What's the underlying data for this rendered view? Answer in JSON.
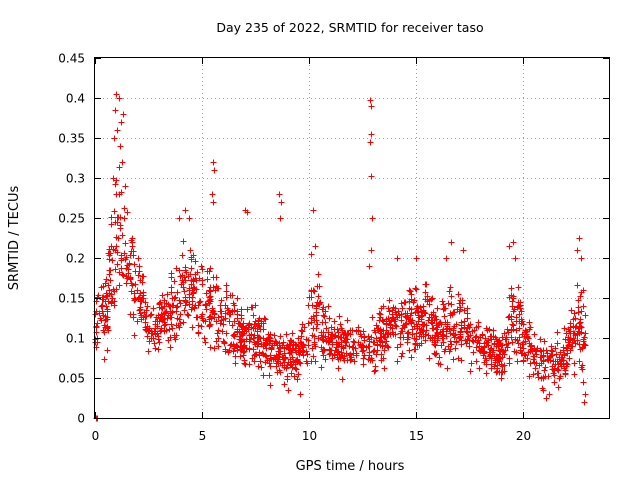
{
  "chart_data": {
    "type": "scatter",
    "title": "Day 235 of 2022, SRMTID for receiver taso",
    "xlabel": "GPS time / hours",
    "ylabel": "SRMTID / TECUs",
    "xlim": [
      0,
      24
    ],
    "ylim": [
      0,
      0.45
    ],
    "x_ticks": [
      0,
      5,
      10,
      15,
      20
    ],
    "x_tick_labels": [
      "0",
      "5",
      "10",
      "15",
      "20"
    ],
    "y_ticks": [
      0,
      0.05,
      0.1,
      0.15,
      0.2,
      0.25,
      0.3,
      0.35,
      0.4,
      0.45
    ],
    "y_tick_labels": [
      "0",
      "0.05",
      "0.1",
      "0.15",
      "0.2",
      "0.25",
      "0.3",
      "0.35",
      "0.4",
      "0.45"
    ],
    "grid": true,
    "marker": "+",
    "series_color": "#ff0000",
    "data_x_range": [
      0,
      22.9
    ],
    "approx_point_count": 1700,
    "envelope": {
      "x": [
        0,
        0.5,
        1,
        1.5,
        2,
        2.5,
        3,
        3.5,
        4,
        4.5,
        5,
        5.5,
        6,
        6.5,
        7,
        7.5,
        8,
        8.5,
        9,
        9.5,
        10,
        10.5,
        11,
        11.5,
        12,
        12.5,
        13,
        13.5,
        14,
        14.5,
        15,
        15.5,
        16,
        16.5,
        17,
        17.5,
        18,
        18.5,
        19,
        19.5,
        20,
        20.5,
        21,
        21.5,
        22,
        22.5,
        22.9
      ],
      "center": [
        0.12,
        0.13,
        0.22,
        0.2,
        0.16,
        0.11,
        0.12,
        0.13,
        0.16,
        0.17,
        0.14,
        0.14,
        0.12,
        0.11,
        0.1,
        0.11,
        0.09,
        0.08,
        0.08,
        0.08,
        0.12,
        0.12,
        0.1,
        0.09,
        0.09,
        0.09,
        0.09,
        0.11,
        0.12,
        0.12,
        0.12,
        0.13,
        0.1,
        0.12,
        0.12,
        0.1,
        0.09,
        0.08,
        0.08,
        0.13,
        0.1,
        0.08,
        0.07,
        0.07,
        0.08,
        0.12,
        0.1
      ],
      "spread": [
        0.04,
        0.045,
        0.09,
        0.07,
        0.05,
        0.03,
        0.035,
        0.045,
        0.05,
        0.05,
        0.045,
        0.05,
        0.04,
        0.04,
        0.035,
        0.04,
        0.03,
        0.03,
        0.03,
        0.03,
        0.05,
        0.04,
        0.03,
        0.03,
        0.03,
        0.03,
        0.03,
        0.035,
        0.04,
        0.035,
        0.04,
        0.04,
        0.035,
        0.04,
        0.04,
        0.035,
        0.03,
        0.03,
        0.03,
        0.05,
        0.035,
        0.03,
        0.03,
        0.03,
        0.03,
        0.05,
        0.04
      ]
    },
    "highlight_points": [
      {
        "x": 0.05,
        "y": 0.0
      },
      {
        "x": 0.1,
        "y": 0.0
      },
      {
        "x": 1.0,
        "y": 0.405
      },
      {
        "x": 1.1,
        "y": 0.4
      },
      {
        "x": 0.95,
        "y": 0.385
      },
      {
        "x": 1.3,
        "y": 0.38
      },
      {
        "x": 1.2,
        "y": 0.37
      },
      {
        "x": 1.05,
        "y": 0.36
      },
      {
        "x": 0.9,
        "y": 0.35
      },
      {
        "x": 1.15,
        "y": 0.34
      },
      {
        "x": 1.25,
        "y": 0.32
      },
      {
        "x": 0.85,
        "y": 0.3
      },
      {
        "x": 1.4,
        "y": 0.29
      },
      {
        "x": 1.0,
        "y": 0.28
      },
      {
        "x": 5.5,
        "y": 0.32
      },
      {
        "x": 5.55,
        "y": 0.31
      },
      {
        "x": 5.45,
        "y": 0.28
      },
      {
        "x": 5.5,
        "y": 0.27
      },
      {
        "x": 4.2,
        "y": 0.26
      },
      {
        "x": 4.4,
        "y": 0.25
      },
      {
        "x": 3.9,
        "y": 0.25
      },
      {
        "x": 12.85,
        "y": 0.397
      },
      {
        "x": 12.9,
        "y": 0.39
      },
      {
        "x": 12.9,
        "y": 0.355
      },
      {
        "x": 12.85,
        "y": 0.345
      },
      {
        "x": 12.9,
        "y": 0.303
      },
      {
        "x": 12.95,
        "y": 0.25
      },
      {
        "x": 12.9,
        "y": 0.21
      },
      {
        "x": 12.8,
        "y": 0.19
      },
      {
        "x": 8.6,
        "y": 0.28
      },
      {
        "x": 8.7,
        "y": 0.27
      },
      {
        "x": 8.65,
        "y": 0.25
      },
      {
        "x": 10.2,
        "y": 0.26
      },
      {
        "x": 10.25,
        "y": 0.215
      },
      {
        "x": 10.1,
        "y": 0.205
      },
      {
        "x": 7.0,
        "y": 0.26
      },
      {
        "x": 7.1,
        "y": 0.258
      },
      {
        "x": 9.55,
        "y": 0.03
      },
      {
        "x": 9.0,
        "y": 0.035
      },
      {
        "x": 19.5,
        "y": 0.22
      },
      {
        "x": 19.35,
        "y": 0.215
      },
      {
        "x": 19.6,
        "y": 0.2
      },
      {
        "x": 22.6,
        "y": 0.225
      },
      {
        "x": 22.5,
        "y": 0.21
      },
      {
        "x": 22.7,
        "y": 0.2
      },
      {
        "x": 22.8,
        "y": 0.045
      },
      {
        "x": 22.9,
        "y": 0.03
      },
      {
        "x": 22.85,
        "y": 0.02
      },
      {
        "x": 21.05,
        "y": 0.025
      },
      {
        "x": 21.2,
        "y": 0.03
      },
      {
        "x": 20.9,
        "y": 0.035
      },
      {
        "x": 15.0,
        "y": 0.2
      },
      {
        "x": 14.1,
        "y": 0.2
      },
      {
        "x": 16.6,
        "y": 0.22
      },
      {
        "x": 16.4,
        "y": 0.2
      },
      {
        "x": 17.2,
        "y": 0.21
      }
    ]
  }
}
